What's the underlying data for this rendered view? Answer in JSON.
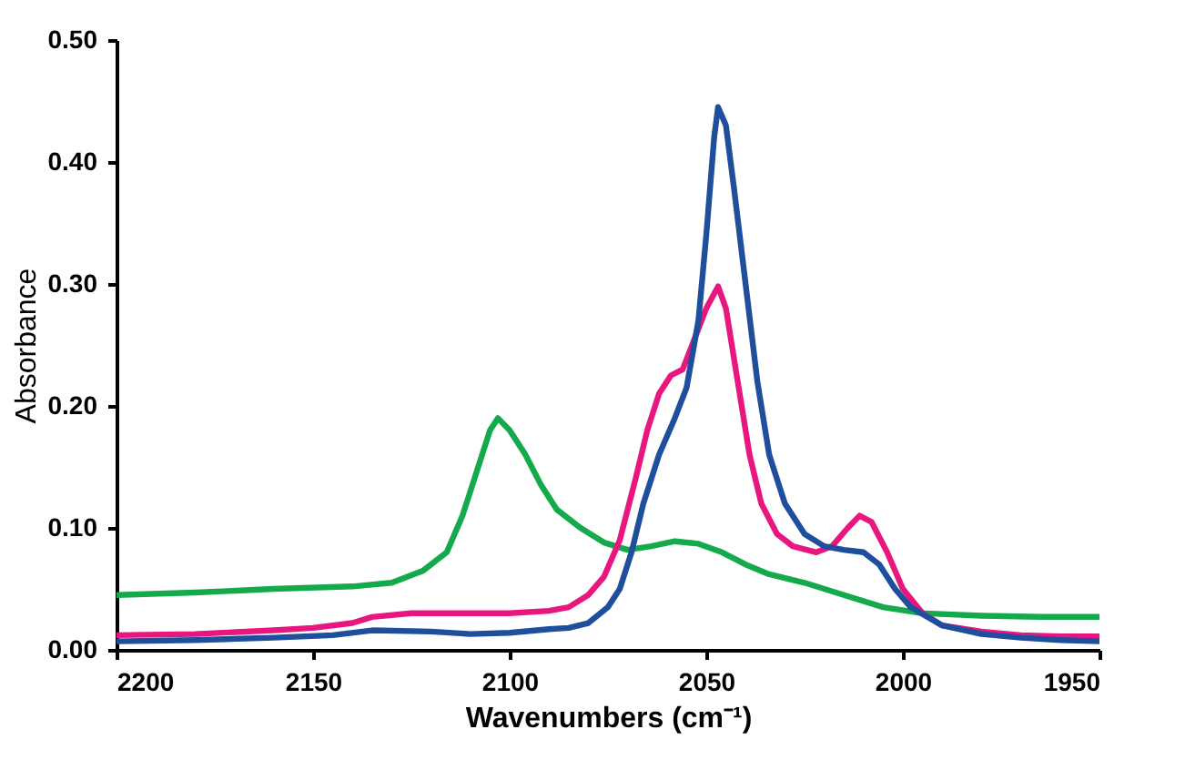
{
  "chart_data": {
    "type": "line",
    "xlabel": "Wavenumbers (cm⁻¹)",
    "ylabel": "Absorbance",
    "xlim": [
      2200,
      1950
    ],
    "xticks": [
      2200,
      2150,
      2100,
      2050,
      2000,
      1950
    ],
    "ylim": [
      0,
      0.5
    ],
    "yticks": [
      {
        "value": 0,
        "label": "0.00"
      },
      {
        "value": 0.1,
        "label": "0.10"
      },
      {
        "value": 0.2,
        "label": "0.20"
      },
      {
        "value": 0.3,
        "label": "0.30"
      },
      {
        "value": 0.4,
        "label": "0.40"
      },
      {
        "value": 0.5,
        "label": "0.50"
      }
    ],
    "grid": false,
    "marker": "none",
    "line_style": "solid",
    "series": [
      {
        "color": "#14a94b",
        "x": [
          2200,
          2180,
          2160,
          2140,
          2130,
          2122,
          2116,
          2112,
          2108,
          2105,
          2103,
          2100,
          2096,
          2092,
          2088,
          2082,
          2076,
          2070,
          2064,
          2058,
          2052,
          2046,
          2040,
          2034,
          2025,
          2015,
          2005,
          1995,
          1980,
          1965,
          1950
        ],
        "values": [
          0.045,
          0.047,
          0.05,
          0.052,
          0.055,
          0.065,
          0.08,
          0.11,
          0.15,
          0.18,
          0.19,
          0.18,
          0.16,
          0.135,
          0.115,
          0.1,
          0.088,
          0.082,
          0.085,
          0.089,
          0.087,
          0.08,
          0.07,
          0.062,
          0.055,
          0.045,
          0.035,
          0.03,
          0.028,
          0.027,
          0.027
        ]
      },
      {
        "color": "#e8177f",
        "x": [
          2200,
          2180,
          2160,
          2150,
          2140,
          2135,
          2125,
          2110,
          2100,
          2090,
          2085,
          2080,
          2076,
          2072,
          2068,
          2065,
          2062,
          2059,
          2056,
          2053,
          2050,
          2047,
          2045,
          2042,
          2039,
          2036,
          2032,
          2028,
          2022,
          2018,
          2014,
          2011,
          2008,
          2004,
          2000,
          1995,
          1990,
          1980,
          1970,
          1960,
          1950
        ],
        "values": [
          0.012,
          0.013,
          0.016,
          0.018,
          0.022,
          0.027,
          0.03,
          0.03,
          0.03,
          0.032,
          0.035,
          0.045,
          0.06,
          0.09,
          0.14,
          0.18,
          0.21,
          0.225,
          0.23,
          0.255,
          0.28,
          0.298,
          0.28,
          0.22,
          0.16,
          0.12,
          0.095,
          0.085,
          0.08,
          0.085,
          0.1,
          0.11,
          0.105,
          0.08,
          0.05,
          0.03,
          0.02,
          0.015,
          0.012,
          0.011,
          0.011
        ]
      },
      {
        "color": "#1f4e9c",
        "x": [
          2200,
          2180,
          2160,
          2145,
          2135,
          2120,
          2110,
          2100,
          2090,
          2085,
          2080,
          2075,
          2072,
          2069,
          2066,
          2062,
          2058,
          2055,
          2052,
          2050,
          2048,
          2047,
          2045,
          2043,
          2040,
          2037,
          2034,
          2030,
          2025,
          2020,
          2015,
          2010,
          2006,
          2002,
          1998,
          1990,
          1980,
          1970,
          1960,
          1950
        ],
        "values": [
          0.007,
          0.008,
          0.01,
          0.012,
          0.016,
          0.015,
          0.013,
          0.014,
          0.017,
          0.018,
          0.022,
          0.035,
          0.05,
          0.08,
          0.12,
          0.16,
          0.19,
          0.215,
          0.27,
          0.34,
          0.42,
          0.445,
          0.43,
          0.38,
          0.3,
          0.22,
          0.16,
          0.12,
          0.095,
          0.085,
          0.082,
          0.08,
          0.07,
          0.05,
          0.035,
          0.02,
          0.013,
          0.01,
          0.008,
          0.007
        ]
      }
    ]
  }
}
